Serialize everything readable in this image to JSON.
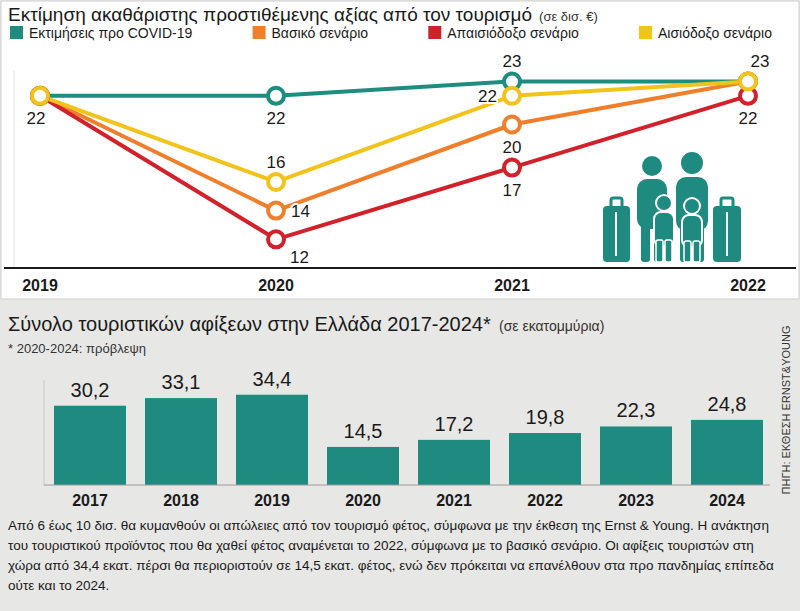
{
  "chart_data": [
    {
      "type": "line",
      "title": "Εκτίμηση ακαθάριστης προστιθέμενης αξίας από τον τουρισμό",
      "subtitle": "(σε δισ. €)",
      "categories": [
        "2019",
        "2020",
        "2021",
        "2022"
      ],
      "series": [
        {
          "name": "Εκτιμήσεις προ COVID-19",
          "color": "#1f8c80",
          "values": [
            22,
            22,
            23,
            23
          ],
          "value_labels": [
            "22",
            "22",
            "23",
            "23"
          ]
        },
        {
          "name": "Βασικό σενάριο",
          "color": "#f07f2b",
          "values": [
            22,
            14,
            20,
            23
          ],
          "value_labels": [
            null,
            "14",
            "20",
            null
          ]
        },
        {
          "name": "Απαισιόδοξο σενάριο",
          "color": "#d3212c",
          "values": [
            22,
            12,
            17,
            22
          ],
          "value_labels": [
            null,
            "12",
            "17",
            "22"
          ]
        },
        {
          "name": "Αισιόδοξο σενάριο",
          "color": "#f2c31b",
          "values": [
            22,
            16,
            22,
            23
          ],
          "value_labels": [
            null,
            "16",
            "22",
            null
          ]
        }
      ],
      "ylim": [
        10,
        23.8
      ],
      "legend": "top",
      "marker": "circle",
      "data_labels": true,
      "tick_labels": "x",
      "grid": false
    },
    {
      "type": "bar",
      "title": "Σύνολο τουριστικών αφίξεων στην Ελλάδα 2017-2024*",
      "subtitle": "(σε εκατομμύρια)",
      "note": "* 2020-2024: πρόβλεψη",
      "categories": [
        "2017",
        "2018",
        "2019",
        "2020",
        "2021",
        "2022",
        "2023",
        "2024"
      ],
      "values": [
        30.2,
        33.1,
        34.4,
        14.5,
        17.2,
        19.8,
        22.3,
        24.8
      ],
      "value_labels": [
        "30,2",
        "33,1",
        "34,4",
        "14,5",
        "17,2",
        "19,8",
        "22,3",
        "24,8"
      ],
      "color": "#1e8a80",
      "ylim": [
        0,
        40
      ],
      "data_labels": true,
      "tick_labels": "x",
      "grid": false
    }
  ],
  "source": "ΠΗΓΗ: ΕΚΘΕΣΗ ERNST&YOUNG",
  "caption": "Από 6 έως 10 δισ. θα κυμανθούν οι απώλειες από τον τουρισμό φέτος, σύμφωνα με την έκθεση της Ernst & Young. Η ανάκτηση του τουριστικού προϊόντος που θα χαθεί φέτος αναμένεται το 2022, σύμφωνα με το βασικό σενάριο. Οι αφίξεις τουριστών στη χώρα από 34,4 εκατ. πέρσι θα περιοριστούν σε 14,5 εκατ. φέτος, ενώ δεν πρόκειται να επανέλθουν στα προ πανδημίας επίπεδα ούτε και το 2024."
}
